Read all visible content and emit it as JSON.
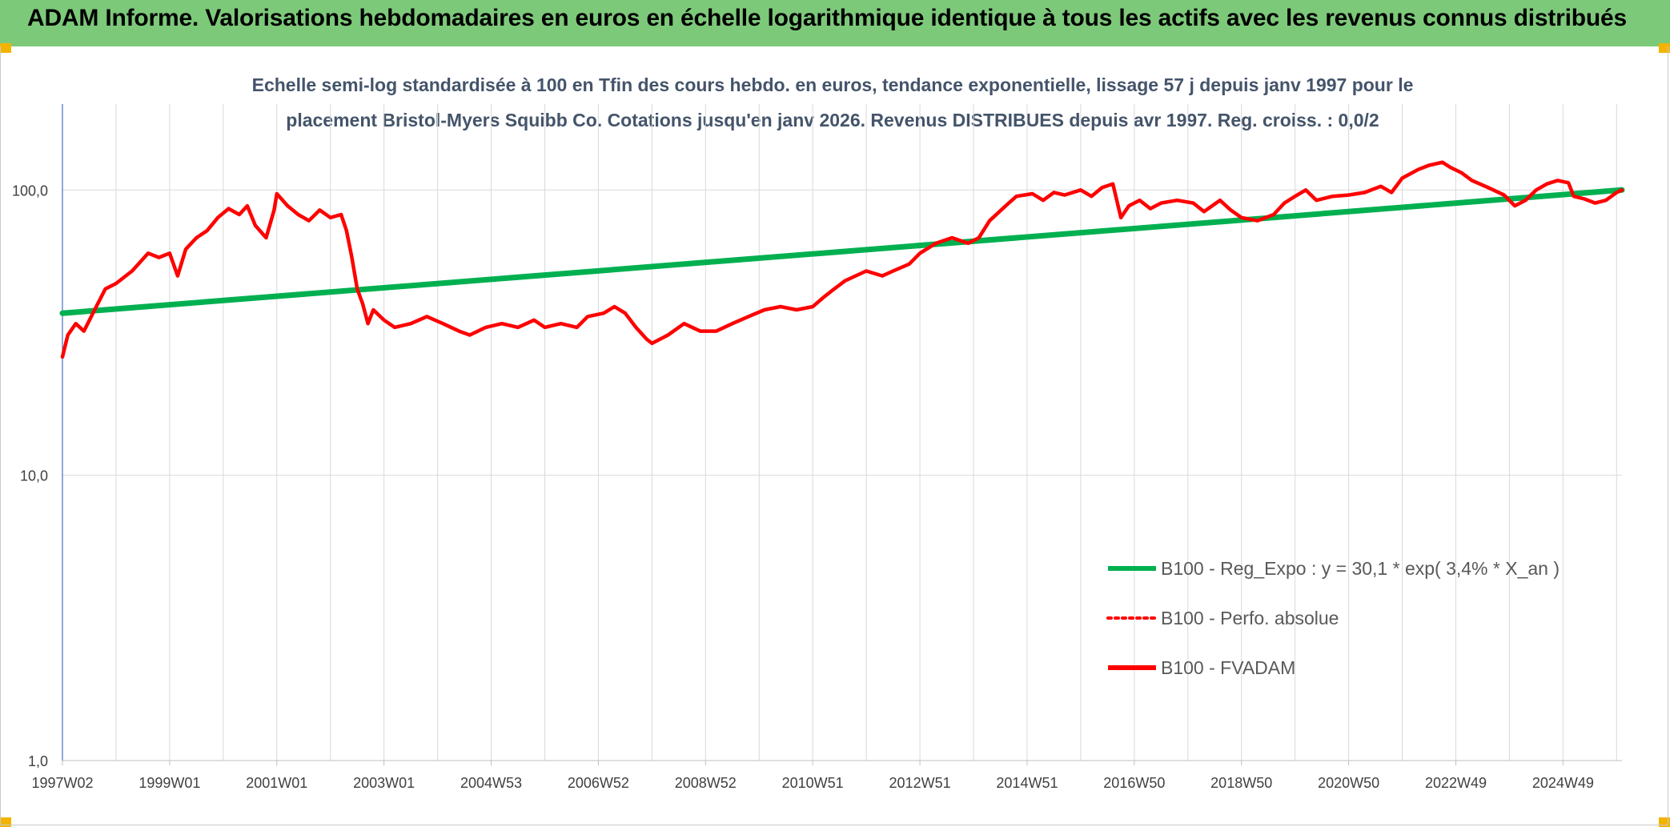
{
  "header": {
    "title": "ADAM Informe. Valorisations hebdomadaires en euros en échelle logarithmique identique à tous les actifs avec les revenus connus distribués"
  },
  "colors": {
    "header_bg": "#7dc97a",
    "corner_accent": "#f2b400",
    "trend_line": "#00b050",
    "price_line": "#ff0000",
    "grid": "#d9d9d9",
    "axis": "#4472c4"
  },
  "chart_data": {
    "type": "line",
    "title": "",
    "subtitle_lines": [
      "Echelle semi-log standardisée à 100 en Tfin des cours hebdo. en euros, tendance exponentielle, lissage 57 j depuis janv 1997 pour le",
      "placement Bristol-Myers Squibb Co. Cotations jusqu'en janv 2026. Revenus DISTRIBUES depuis avr 1997. Reg. croiss. : 0,0/2"
    ],
    "y_scale": "log",
    "ylim": [
      1,
      200
    ],
    "y_ticks": [
      {
        "value": 1,
        "label": "1,0"
      },
      {
        "value": 10,
        "label": "10,0"
      },
      {
        "value": 100,
        "label": "100,0"
      }
    ],
    "x_range": [
      1997.0,
      2026.1
    ],
    "x_ticks": [
      {
        "value": 1997.0,
        "label": "1997W02"
      },
      {
        "value": 1999.0,
        "label": "1999W01"
      },
      {
        "value": 2001.0,
        "label": "2001W01"
      },
      {
        "value": 2003.0,
        "label": "2003W01"
      },
      {
        "value": 2005.0,
        "label": "2004W53"
      },
      {
        "value": 2007.0,
        "label": "2006W52"
      },
      {
        "value": 2009.0,
        "label": "2008W52"
      },
      {
        "value": 2011.0,
        "label": "2010W51"
      },
      {
        "value": 2013.0,
        "label": "2012W51"
      },
      {
        "value": 2015.0,
        "label": "2014W51"
      },
      {
        "value": 2017.0,
        "label": "2016W50"
      },
      {
        "value": 2019.0,
        "label": "2018W50"
      },
      {
        "value": 2021.0,
        "label": "2020W50"
      },
      {
        "value": 2023.0,
        "label": "2022W49"
      },
      {
        "value": 2025.0,
        "label": "2024W49"
      }
    ],
    "grid": true,
    "legend_position": "bottom-right",
    "series": [
      {
        "name": "B100 - Reg_Expo : y = 30,1 * exp( 3,4% *  X_an )",
        "color": "#00b050",
        "style": "solid",
        "points": [
          [
            1997.0,
            37
          ],
          [
            2026.1,
            100
          ]
        ]
      },
      {
        "name": "B100 - Perfo. absolue",
        "color": "#ff0000",
        "style": "dotted",
        "points": []
      },
      {
        "name": "B100 - FVADAM",
        "color": "#ff0000",
        "style": "solid",
        "points": [
          [
            1997.0,
            26
          ],
          [
            1997.1,
            31
          ],
          [
            1997.25,
            34
          ],
          [
            1997.4,
            32
          ],
          [
            1997.6,
            38
          ],
          [
            1997.8,
            45
          ],
          [
            1998.0,
            47
          ],
          [
            1998.3,
            52
          ],
          [
            1998.6,
            60
          ],
          [
            1998.8,
            58
          ],
          [
            1999.0,
            60
          ],
          [
            1999.15,
            50
          ],
          [
            1999.3,
            62
          ],
          [
            1999.5,
            68
          ],
          [
            1999.7,
            72
          ],
          [
            1999.9,
            80
          ],
          [
            2000.1,
            86
          ],
          [
            2000.3,
            82
          ],
          [
            2000.45,
            88
          ],
          [
            2000.6,
            75
          ],
          [
            2000.8,
            68
          ],
          [
            2000.95,
            85
          ],
          [
            2001.0,
            97
          ],
          [
            2001.2,
            88
          ],
          [
            2001.4,
            82
          ],
          [
            2001.6,
            78
          ],
          [
            2001.8,
            85
          ],
          [
            2002.0,
            80
          ],
          [
            2002.2,
            82
          ],
          [
            2002.3,
            72
          ],
          [
            2002.4,
            58
          ],
          [
            2002.5,
            45
          ],
          [
            2002.6,
            40
          ],
          [
            2002.7,
            34
          ],
          [
            2002.8,
            38
          ],
          [
            2003.0,
            35
          ],
          [
            2003.2,
            33
          ],
          [
            2003.5,
            34
          ],
          [
            2003.8,
            36
          ],
          [
            2004.1,
            34
          ],
          [
            2004.4,
            32
          ],
          [
            2004.6,
            31
          ],
          [
            2004.9,
            33
          ],
          [
            2005.2,
            34
          ],
          [
            2005.5,
            33
          ],
          [
            2005.8,
            35
          ],
          [
            2006.0,
            33
          ],
          [
            2006.3,
            34
          ],
          [
            2006.6,
            33
          ],
          [
            2006.8,
            36
          ],
          [
            2007.1,
            37
          ],
          [
            2007.3,
            39
          ],
          [
            2007.5,
            37
          ],
          [
            2007.7,
            33
          ],
          [
            2007.9,
            30
          ],
          [
            2008.0,
            29
          ],
          [
            2008.3,
            31
          ],
          [
            2008.6,
            34
          ],
          [
            2008.9,
            32
          ],
          [
            2009.2,
            32
          ],
          [
            2009.5,
            34
          ],
          [
            2009.8,
            36
          ],
          [
            2010.1,
            38
          ],
          [
            2010.4,
            39
          ],
          [
            2010.7,
            38
          ],
          [
            2011.0,
            39
          ],
          [
            2011.2,
            42
          ],
          [
            2011.4,
            45
          ],
          [
            2011.6,
            48
          ],
          [
            2011.8,
            50
          ],
          [
            2012.0,
            52
          ],
          [
            2012.3,
            50
          ],
          [
            2012.5,
            52
          ],
          [
            2012.8,
            55
          ],
          [
            2013.0,
            60
          ],
          [
            2013.3,
            65
          ],
          [
            2013.6,
            68
          ],
          [
            2013.9,
            65
          ],
          [
            2014.1,
            68
          ],
          [
            2014.3,
            78
          ],
          [
            2014.6,
            88
          ],
          [
            2014.8,
            95
          ],
          [
            2015.1,
            97
          ],
          [
            2015.3,
            92
          ],
          [
            2015.5,
            98
          ],
          [
            2015.7,
            96
          ],
          [
            2016.0,
            100
          ],
          [
            2016.2,
            95
          ],
          [
            2016.4,
            102
          ],
          [
            2016.6,
            105
          ],
          [
            2016.75,
            80
          ],
          [
            2016.9,
            88
          ],
          [
            2017.1,
            92
          ],
          [
            2017.3,
            86
          ],
          [
            2017.5,
            90
          ],
          [
            2017.8,
            92
          ],
          [
            2018.1,
            90
          ],
          [
            2018.3,
            84
          ],
          [
            2018.6,
            92
          ],
          [
            2018.8,
            85
          ],
          [
            2019.0,
            80
          ],
          [
            2019.3,
            78
          ],
          [
            2019.6,
            82
          ],
          [
            2019.8,
            90
          ],
          [
            2020.0,
            95
          ],
          [
            2020.2,
            100
          ],
          [
            2020.4,
            92
          ],
          [
            2020.7,
            95
          ],
          [
            2021.0,
            96
          ],
          [
            2021.3,
            98
          ],
          [
            2021.6,
            103
          ],
          [
            2021.8,
            98
          ],
          [
            2022.0,
            110
          ],
          [
            2022.3,
            118
          ],
          [
            2022.5,
            122
          ],
          [
            2022.75,
            125
          ],
          [
            2022.9,
            120
          ],
          [
            2023.1,
            115
          ],
          [
            2023.3,
            108
          ],
          [
            2023.6,
            102
          ],
          [
            2023.9,
            96
          ],
          [
            2024.1,
            88
          ],
          [
            2024.3,
            92
          ],
          [
            2024.5,
            100
          ],
          [
            2024.7,
            105
          ],
          [
            2024.9,
            108
          ],
          [
            2025.1,
            106
          ],
          [
            2025.2,
            95
          ],
          [
            2025.4,
            93
          ],
          [
            2025.6,
            90
          ],
          [
            2025.8,
            92
          ],
          [
            2026.0,
            98
          ],
          [
            2026.1,
            100
          ]
        ]
      }
    ]
  }
}
